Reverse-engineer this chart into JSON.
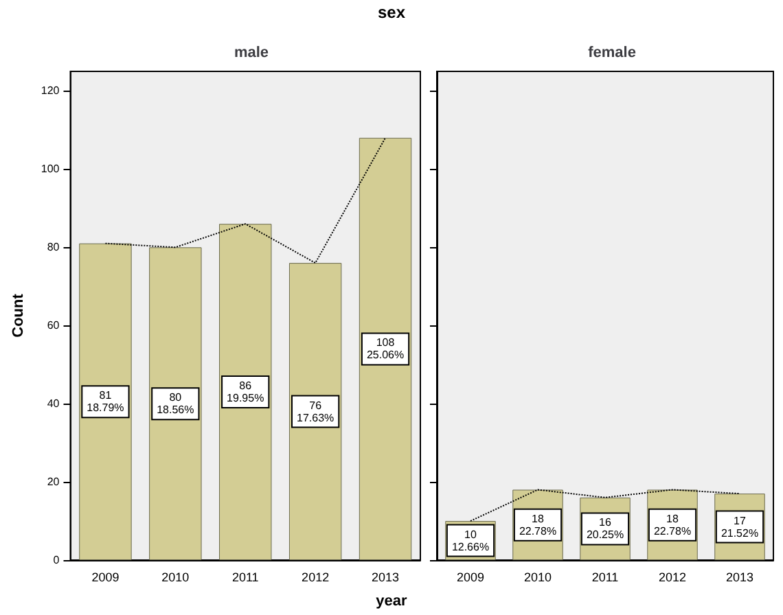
{
  "chart_data": [
    {
      "type": "bar",
      "title": "sex",
      "subtitle": "male",
      "xlabel": "year",
      "ylabel": "Count",
      "categories": [
        "2009",
        "2010",
        "2011",
        "2012",
        "2013"
      ],
      "ylim": [
        0,
        125
      ],
      "yticks": [
        0,
        20,
        40,
        60,
        80,
        100,
        120
      ],
      "line_style": "dotted",
      "marker": "none",
      "series": [
        {
          "color": "#d3cd94",
          "values": [
            81,
            80,
            86,
            76,
            108
          ],
          "value_labels": [
            "81\n18.79%",
            "80\n18.56%",
            "86\n19.95%",
            "76\n17.63%",
            "108\n25.06%"
          ]
        },
        {
          "type": "line",
          "color": "#000000",
          "values": [
            81,
            80,
            86,
            76,
            108
          ]
        }
      ]
    },
    {
      "type": "bar",
      "subtitle": "female",
      "categories": [
        "2009",
        "2010",
        "2011",
        "2012",
        "2013"
      ],
      "ylim": [
        0,
        125
      ],
      "yticks": [
        0,
        20,
        40,
        60,
        80,
        100,
        120
      ],
      "tick_labels": "x",
      "line_style": "dotted",
      "marker": "none",
      "series": [
        {
          "color": "#d3cd94",
          "values": [
            10,
            18,
            16,
            18,
            17
          ],
          "value_labels": [
            "10\n12.66%",
            "18\n22.78%",
            "16\n20.25%",
            "18\n22.78%",
            "17\n21.52%"
          ]
        },
        {
          "type": "line",
          "color": "#000000",
          "values": [
            10,
            18,
            16,
            18,
            17
          ]
        }
      ]
    }
  ]
}
